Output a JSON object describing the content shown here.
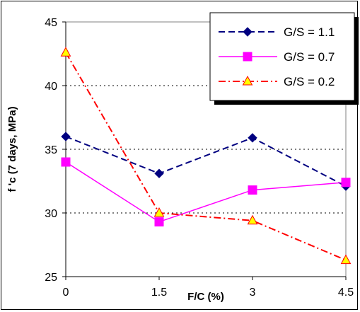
{
  "chart_data": {
    "type": "line",
    "xlabel": "F/C (%)",
    "ylabel": "f 'c (7 days, MPa)",
    "x": [
      0,
      1.5,
      3,
      4.5
    ],
    "x_tick_labels": [
      "0",
      "1.5",
      "3",
      "4.5"
    ],
    "ylim": [
      25,
      45
    ],
    "y_ticks": [
      25,
      30,
      35,
      40,
      45
    ],
    "grid": "horizontal dotted",
    "legend_position": "top-right",
    "series": [
      {
        "name": "G/S = 1.1",
        "values": [
          36.0,
          33.1,
          35.9,
          32.1
        ],
        "color": "#000080",
        "line_style": "dashed",
        "marker": "diamond",
        "marker_fill": "#000080"
      },
      {
        "name": "G/S = 0.7",
        "values": [
          34.0,
          29.3,
          31.8,
          32.4
        ],
        "color": "#ff00ff",
        "line_style": "solid",
        "marker": "square",
        "marker_fill": "#ff00ff"
      },
      {
        "name": "G/S = 0.2",
        "values": [
          42.6,
          30.0,
          29.4,
          26.3
        ],
        "color": "#ff0000",
        "line_style": "dash-dot",
        "marker": "triangle",
        "marker_fill": "#ffff00"
      }
    ]
  }
}
